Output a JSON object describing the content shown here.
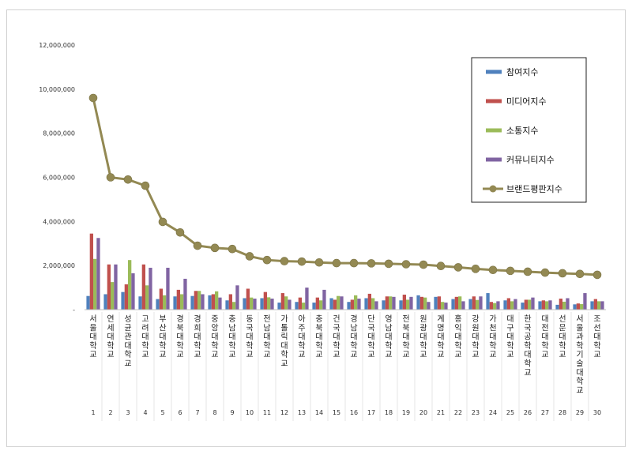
{
  "chart_data": {
    "type": "bar",
    "ylim": [
      0,
      12000000
    ],
    "yticks": [
      "-",
      "2,000,000",
      "4,000,000",
      "6,000,000",
      "8,000,000",
      "10,000,000",
      "12,000,000"
    ],
    "ytick_values": [
      0,
      2000000,
      4000000,
      6000000,
      8000000,
      10000000,
      12000000
    ],
    "legend_position": "top-right",
    "grid": false,
    "categories": [
      "서울대학교",
      "연세대학교",
      "성균관대학교",
      "고려대학교",
      "부산대학교",
      "경북대학교",
      "경희대학교",
      "중앙대학교",
      "충남대학교",
      "동국대학교",
      "전남대학교",
      "가톨릭대학교",
      "아주대학교",
      "충북대학교",
      "건국대학교",
      "경남대학교",
      "단국대학교",
      "영남대학교",
      "전북대학교",
      "원광대학교",
      "계명대학교",
      "홍익대학교",
      "강원대학교",
      "가천대학교",
      "대구대학교",
      "한국공학대학교",
      "대전대학교",
      "선문대학교",
      "서울과학기술대학교",
      "조선대학교"
    ],
    "ranks": [
      "1",
      "2",
      "3",
      "4",
      "5",
      "6",
      "7",
      "8",
      "9",
      "10",
      "11",
      "12",
      "13",
      "14",
      "15",
      "16",
      "17",
      "18",
      "19",
      "20",
      "21",
      "22",
      "23",
      "24",
      "25",
      "26",
      "27",
      "28",
      "29",
      "30"
    ],
    "series": [
      {
        "name": "참여지수",
        "color": "#4f81bd",
        "kind": "bar",
        "values": [
          620000,
          700000,
          800000,
          600000,
          480000,
          600000,
          620000,
          650000,
          420000,
          520000,
          520000,
          320000,
          350000,
          320000,
          520000,
          350000,
          520000,
          420000,
          420000,
          650000,
          580000,
          480000,
          480000,
          750000,
          420000,
          320000,
          380000,
          220000,
          240000,
          380000
        ]
      },
      {
        "name": "미디어지수",
        "color": "#c0504d",
        "kind": "bar",
        "values": [
          3450000,
          2050000,
          1150000,
          2050000,
          950000,
          900000,
          850000,
          700000,
          700000,
          950000,
          800000,
          750000,
          550000,
          550000,
          450000,
          450000,
          720000,
          600000,
          680000,
          580000,
          600000,
          580000,
          600000,
          350000,
          520000,
          450000,
          420000,
          500000,
          280000,
          480000
        ]
      },
      {
        "name": "소통지수",
        "color": "#9bbb59",
        "kind": "bar",
        "values": [
          2300000,
          1250000,
          2250000,
          1100000,
          650000,
          700000,
          850000,
          830000,
          350000,
          550000,
          560000,
          600000,
          320000,
          420000,
          620000,
          650000,
          520000,
          600000,
          450000,
          550000,
          350000,
          600000,
          440000,
          300000,
          380000,
          450000,
          380000,
          360000,
          250000,
          380000
        ]
      },
      {
        "name": "커뮤니티지수",
        "color": "#8064a2",
        "kind": "bar",
        "values": [
          3250000,
          2050000,
          1650000,
          1900000,
          1900000,
          1400000,
          700000,
          550000,
          1100000,
          500000,
          500000,
          450000,
          1000000,
          900000,
          600000,
          500000,
          380000,
          580000,
          580000,
          350000,
          320000,
          380000,
          600000,
          380000,
          480000,
          550000,
          420000,
          520000,
          750000,
          380000
        ]
      },
      {
        "name": "브랜드평판지수",
        "color": "#938953",
        "kind": "line",
        "values": [
          9600000,
          6000000,
          5900000,
          5620000,
          3980000,
          3500000,
          2900000,
          2800000,
          2750000,
          2420000,
          2250000,
          2200000,
          2180000,
          2140000,
          2110000,
          2110000,
          2100000,
          2080000,
          2060000,
          2040000,
          1980000,
          1920000,
          1850000,
          1800000,
          1760000,
          1720000,
          1680000,
          1650000,
          1620000,
          1580000
        ]
      }
    ]
  }
}
